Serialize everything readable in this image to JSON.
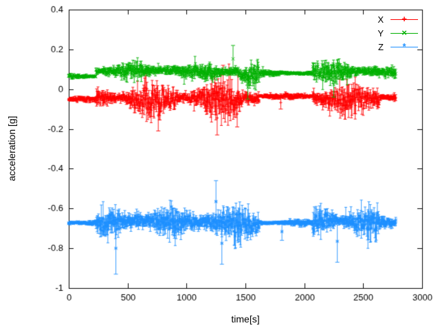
{
  "figure": {
    "xlabel": "time[s]",
    "ylabel": "acceleration [g]",
    "background": "#ffffff",
    "border_color": "#000000",
    "text_color": "#000000"
  },
  "chart_data": {
    "type": "line",
    "subtype": "errorbars-timeseries",
    "title": "",
    "xlabel": "time[s]",
    "ylabel": "acceleration [g]",
    "xlim": [
      0,
      3000
    ],
    "ylim": [
      -1,
      0.4
    ],
    "xtick_values": [
      0,
      500,
      1000,
      1500,
      2000,
      2500,
      3000
    ],
    "xtick_labels": [
      "0",
      "500",
      "1000",
      "1500",
      "2000",
      "2500",
      "3000"
    ],
    "ytick_values": [
      -1,
      -0.8,
      -0.6,
      -0.4,
      -0.2,
      0,
      0.2,
      0.4
    ],
    "ytick_labels": [
      "-1",
      "-0.8",
      "-0.6",
      "-0.4",
      "-0.2",
      "0",
      "0.2",
      "0.4"
    ],
    "grid": false,
    "legend_position": "top-right",
    "sample_step": 4,
    "t_end": 2780,
    "series": [
      {
        "name": "X",
        "color": "#ff0000",
        "marker": "plus",
        "marker_char": "+",
        "segments": [
          [
            0,
            230,
            -0.05,
            0.012
          ],
          [
            230,
            520,
            -0.045,
            0.045
          ],
          [
            520,
            900,
            -0.055,
            0.065
          ],
          [
            900,
            1150,
            -0.045,
            0.055
          ],
          [
            1150,
            1460,
            -0.06,
            0.075
          ],
          [
            1460,
            1620,
            -0.05,
            0.055
          ],
          [
            1620,
            2070,
            -0.035,
            0.012
          ],
          [
            2070,
            2400,
            -0.05,
            0.065
          ],
          [
            2400,
            2640,
            -0.05,
            0.06
          ],
          [
            2640,
            2780,
            -0.042,
            0.028
          ]
        ],
        "spikes": [
          [
            760,
            -0.21
          ],
          [
            1260,
            -0.23
          ],
          [
            1310,
            0.12
          ],
          [
            1430,
            -0.19
          ],
          [
            1800,
            -0.1
          ]
        ]
      },
      {
        "name": "Y",
        "color": "#00b000",
        "marker": "cross",
        "marker_char": "×",
        "segments": [
          [
            0,
            230,
            0.065,
            0.01
          ],
          [
            230,
            520,
            0.09,
            0.028
          ],
          [
            520,
            900,
            0.095,
            0.032
          ],
          [
            900,
            1150,
            0.09,
            0.03
          ],
          [
            1150,
            1460,
            0.085,
            0.04
          ],
          [
            1460,
            1620,
            0.07,
            0.05
          ],
          [
            1620,
            2070,
            0.08,
            0.012
          ],
          [
            2070,
            2400,
            0.085,
            0.042
          ],
          [
            2400,
            2640,
            0.09,
            0.038
          ],
          [
            2640,
            2780,
            0.085,
            0.022
          ]
        ],
        "spikes": [
          [
            1395,
            0.22
          ],
          [
            1520,
            -0.05
          ],
          [
            2250,
            -0.04
          ]
        ]
      },
      {
        "name": "Z",
        "color": "#1e90ff",
        "marker": "star",
        "marker_char": "*",
        "segments": [
          [
            0,
            230,
            -0.672,
            0.012
          ],
          [
            230,
            520,
            -0.67,
            0.05
          ],
          [
            520,
            900,
            -0.66,
            0.065
          ],
          [
            900,
            1150,
            -0.67,
            0.055
          ],
          [
            1150,
            1460,
            -0.67,
            0.075
          ],
          [
            1460,
            1620,
            -0.68,
            0.055
          ],
          [
            1620,
            2070,
            -0.672,
            0.012
          ],
          [
            2070,
            2400,
            -0.66,
            0.06
          ],
          [
            2400,
            2640,
            -0.67,
            0.06
          ],
          [
            2640,
            2780,
            -0.672,
            0.026
          ]
        ],
        "spikes": [
          [
            400,
            -0.93
          ],
          [
            1250,
            -0.46
          ],
          [
            1300,
            -0.88
          ],
          [
            1810,
            -0.76
          ],
          [
            2280,
            -0.87
          ]
        ]
      }
    ]
  }
}
